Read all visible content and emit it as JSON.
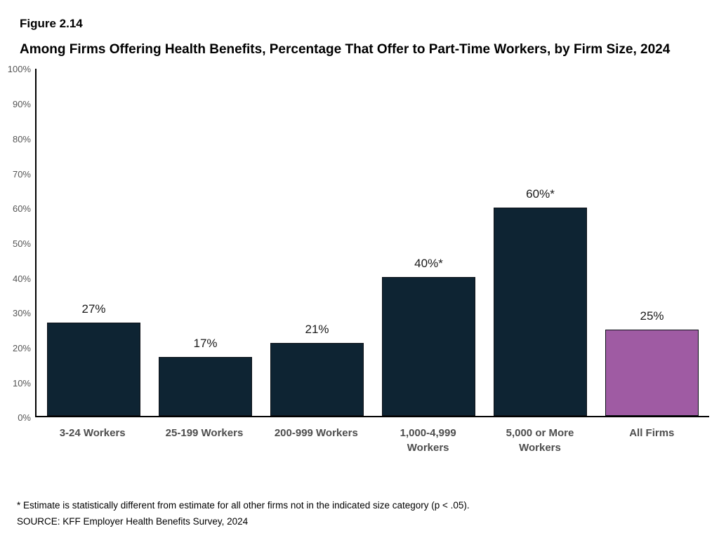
{
  "figure": {
    "label": "Figure 2.14",
    "title": "Among Firms Offering Health Benefits, Percentage That Offer to Part-Time Workers, by Firm Size, 2024"
  },
  "chart_data": {
    "type": "bar",
    "categories": [
      "3-24 Workers",
      "25-199 Workers",
      "200-999 Workers",
      "1,000-4,999 Workers",
      "5,000 or More Workers",
      "All Firms"
    ],
    "values": [
      27,
      17,
      21,
      40,
      60,
      25
    ],
    "value_labels": [
      "27%",
      "17%",
      "21%",
      "40%*",
      "60%*",
      "25%"
    ],
    "bar_colors": [
      "#0e2433",
      "#0e2433",
      "#0e2433",
      "#0e2433",
      "#0e2433",
      "#9f5ba3"
    ],
    "ylim": [
      0,
      100
    ],
    "ytick_step": 10,
    "ytick_labels": [
      "0%",
      "10%",
      "20%",
      "30%",
      "40%",
      "50%",
      "60%",
      "70%",
      "80%",
      "90%",
      "100%"
    ],
    "grid": false,
    "legend": "none",
    "title": "Among Firms Offering Health Benefits, Percentage That Offer to Part-Time Workers, by Firm Size, 2024",
    "xlabel": "",
    "ylabel": ""
  },
  "footnotes": {
    "asterisk": "* Estimate is statistically different from estimate for all other firms not in the indicated size category (p < .05).",
    "source": "SOURCE: KFF Employer Health Benefits Survey, 2024"
  }
}
